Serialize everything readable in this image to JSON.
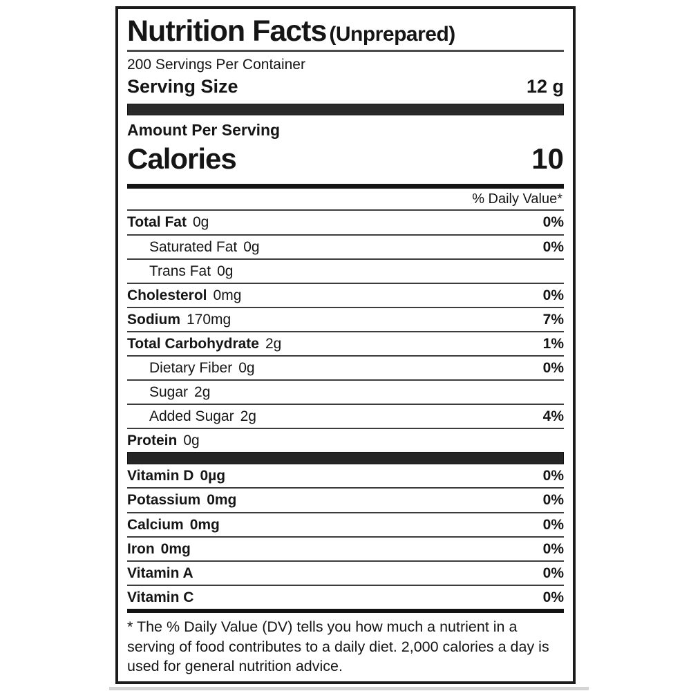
{
  "label": {
    "title": "Nutrition Facts",
    "title_suffix": "(Unprepared)",
    "servings_per_container": "200 Servings Per Container",
    "serving_size_label": "Serving Size",
    "serving_size_value": "12 g",
    "amount_per_serving": "Amount Per Serving",
    "calories_label": "Calories",
    "calories_value": "10",
    "daily_value_header": "% Daily Value*",
    "nutrients": [
      {
        "name": "Total Fat",
        "amount": "0g",
        "dv": "0%",
        "indent": 0
      },
      {
        "name": "Saturated Fat",
        "amount": "0g",
        "dv": "0%",
        "indent": 1
      },
      {
        "name": "Trans Fat",
        "amount": "0g",
        "dv": "",
        "indent": 1
      },
      {
        "name": "Cholesterol",
        "amount": "0mg",
        "dv": "0%",
        "indent": 0
      },
      {
        "name": "Sodium",
        "amount": "170mg",
        "dv": "7%",
        "indent": 0
      },
      {
        "name": "Total Carbohydrate",
        "amount": "2g",
        "dv": "1%",
        "indent": 0
      },
      {
        "name": "Dietary Fiber",
        "amount": "0g",
        "dv": "0%",
        "indent": 1
      },
      {
        "name": "Sugar",
        "amount": "2g",
        "dv": "",
        "indent": 1
      },
      {
        "name": "Added Sugar",
        "amount": "2g",
        "dv": "4%",
        "indent": 1
      },
      {
        "name": "Protein",
        "amount": "0g",
        "dv": "",
        "indent": 0
      }
    ],
    "vitamins": [
      {
        "name": "Vitamin D",
        "amount": "0µg",
        "dv": "0%"
      },
      {
        "name": "Potassium",
        "amount": "0mg",
        "dv": "0%"
      },
      {
        "name": "Calcium",
        "amount": "0mg",
        "dv": "0%"
      },
      {
        "name": "Iron",
        "amount": "0mg",
        "dv": "0%"
      },
      {
        "name": "Vitamin A",
        "amount": "",
        "dv": "0%"
      },
      {
        "name": "Vitamin C",
        "amount": "",
        "dv": "0%"
      }
    ],
    "footnote": "* The % Daily Value (DV) tells you how much a nutrient in a serving of food contributes to a daily diet. 2,000 calories a day is used for general nutrition advice."
  }
}
